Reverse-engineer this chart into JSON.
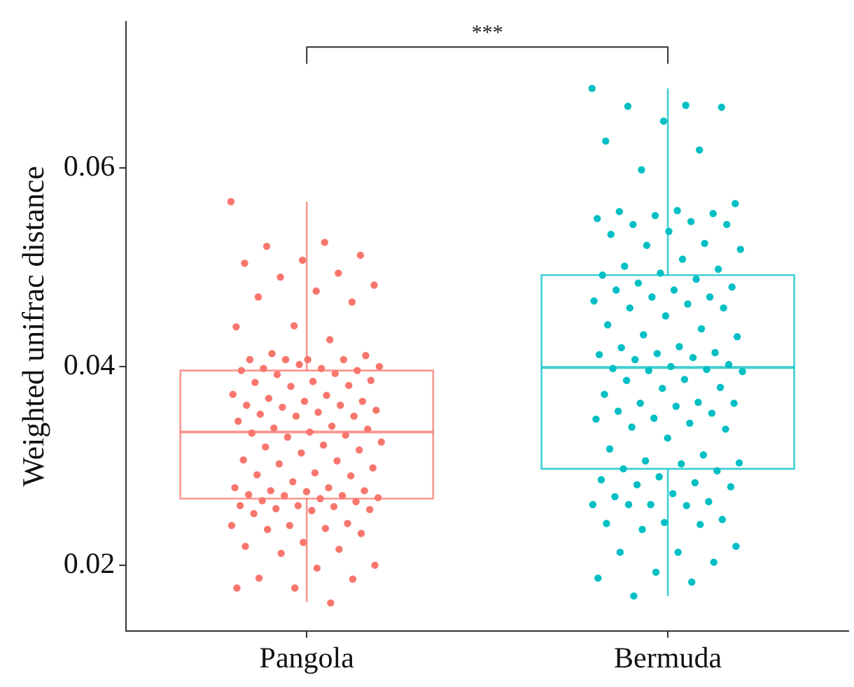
{
  "chart_data": {
    "type": "box",
    "ylabel": "Weighted unifrac distance",
    "categories": [
      "Pangola",
      "Bermuda"
    ],
    "ylim": [
      0.0134,
      0.0747
    ],
    "yticks": [
      0.02,
      0.04,
      0.06
    ],
    "annotations": [
      "***"
    ],
    "series": [
      {
        "type": "box",
        "colors": [
          "#f8766d",
          "#00bfc4"
        ],
        "boxes": [
          {
            "low": 0.0163,
            "q1": 0.0267,
            "median": 0.0334,
            "q3": 0.0396,
            "high": 0.0566
          },
          {
            "low": 0.0169,
            "q1": 0.0297,
            "median": 0.0399,
            "q3": 0.0492,
            "high": 0.068
          }
        ]
      },
      {
        "type": "scatter",
        "color": "#f8766d",
        "x": [
          "Pangola",
          "Pangola",
          "Pangola",
          "Pangola",
          "Pangola",
          "Pangola",
          "Pangola",
          "Pangola",
          "Pangola",
          "Pangola",
          "Pangola",
          "Pangola",
          "Pangola",
          "Pangola",
          "Pangola",
          "Pangola",
          "Pangola",
          "Pangola",
          "Pangola",
          "Pangola",
          "Pangola",
          "Pangola",
          "Pangola",
          "Pangola",
          "Pangola",
          "Pangola",
          "Pangola",
          "Pangola",
          "Pangola",
          "Pangola",
          "Pangola",
          "Pangola",
          "Pangola",
          "Pangola",
          "Pangola",
          "Pangola",
          "Pangola",
          "Pangola",
          "Pangola",
          "Pangola",
          "Pangola",
          "Pangola",
          "Pangola",
          "Pangola",
          "Pangola",
          "Pangola",
          "Pangola",
          "Pangola",
          "Pangola",
          "Pangola",
          "Pangola",
          "Pangola",
          "Pangola",
          "Pangola",
          "Pangola",
          "Pangola",
          "Pangola",
          "Pangola",
          "Pangola",
          "Pangola",
          "Pangola",
          "Pangola",
          "Pangola",
          "Pangola",
          "Pangola",
          "Pangola",
          "Pangola",
          "Pangola",
          "Pangola",
          "Pangola",
          "Pangola",
          "Pangola",
          "Pangola",
          "Pangola",
          "Pangola",
          "Pangola",
          "Pangola",
          "Pangola",
          "Pangola",
          "Pangola",
          "Pangola",
          "Pangola",
          "Pangola",
          "Pangola",
          "Pangola",
          "Pangola",
          "Pangola",
          "Pangola",
          "Pangola",
          "Pangola",
          "Pangola",
          "Pangola",
          "Pangola",
          "Pangola",
          "Pangola",
          "Pangola",
          "Pangola",
          "Pangola",
          "Pangola",
          "Pangola",
          "Pangola",
          "Pangola",
          "Pangola",
          "Pangola"
        ],
        "values": [
          0.0566,
          0.0525,
          0.0521,
          0.0512,
          0.0507,
          0.0504,
          0.0494,
          0.049,
          0.0482,
          0.0476,
          0.047,
          0.0465,
          0.0441,
          0.044,
          0.0427,
          0.0413,
          0.0411,
          0.0407,
          0.0407,
          0.0407,
          0.0407,
          0.04,
          0.0398,
          0.0398,
          0.0396,
          0.0402,
          0.0396,
          0.0393,
          0.0392,
          0.0386,
          0.0385,
          0.0384,
          0.0381,
          0.038,
          0.0372,
          0.0371,
          0.0368,
          0.0365,
          0.0365,
          0.0361,
          0.0361,
          0.0359,
          0.0356,
          0.0354,
          0.0352,
          0.035,
          0.035,
          0.0345,
          0.034,
          0.0338,
          0.0337,
          0.0334,
          0.0333,
          0.0331,
          0.0329,
          0.0324,
          0.0321,
          0.0319,
          0.0316,
          0.0313,
          0.0306,
          0.0305,
          0.0302,
          0.0298,
          0.0293,
          0.0291,
          0.029,
          0.0284,
          0.0278,
          0.0278,
          0.0275,
          0.0275,
          0.0274,
          0.0271,
          0.027,
          0.027,
          0.0268,
          0.0267,
          0.0265,
          0.0264,
          0.026,
          0.026,
          0.0259,
          0.0257,
          0.0256,
          0.0255,
          0.0252,
          0.0242,
          0.024,
          0.024,
          0.0237,
          0.0236,
          0.0232,
          0.0223,
          0.0219,
          0.0216,
          0.0212,
          0.02,
          0.0197,
          0.0187,
          0.0186,
          0.0177,
          0.0177,
          0.0162
        ]
      },
      {
        "type": "scatter",
        "color": "#00bfc4",
        "x": [
          "Bermuda",
          "Bermuda",
          "Bermuda",
          "Bermuda",
          "Bermuda",
          "Bermuda",
          "Bermuda",
          "Bermuda",
          "Bermuda",
          "Bermuda",
          "Bermuda",
          "Bermuda",
          "Bermuda",
          "Bermuda",
          "Bermuda",
          "Bermuda",
          "Bermuda",
          "Bermuda",
          "Bermuda",
          "Bermuda",
          "Bermuda",
          "Bermuda",
          "Bermuda",
          "Bermuda",
          "Bermuda",
          "Bermuda",
          "Bermuda",
          "Bermuda",
          "Bermuda",
          "Bermuda",
          "Bermuda",
          "Bermuda",
          "Bermuda",
          "Bermuda",
          "Bermuda",
          "Bermuda",
          "Bermuda",
          "Bermuda",
          "Bermuda",
          "Bermuda",
          "Bermuda",
          "Bermuda",
          "Bermuda",
          "Bermuda",
          "Bermuda",
          "Bermuda",
          "Bermuda",
          "Bermuda",
          "Bermuda",
          "Bermuda",
          "Bermuda",
          "Bermuda",
          "Bermuda",
          "Bermuda",
          "Bermuda",
          "Bermuda",
          "Bermuda",
          "Bermuda",
          "Bermuda",
          "Bermuda",
          "Bermuda",
          "Bermuda",
          "Bermuda",
          "Bermuda",
          "Bermuda",
          "Bermuda",
          "Bermuda",
          "Bermuda",
          "Bermuda",
          "Bermuda",
          "Bermuda",
          "Bermuda",
          "Bermuda",
          "Bermuda",
          "Bermuda",
          "Bermuda",
          "Bermuda",
          "Bermuda",
          "Bermuda",
          "Bermuda",
          "Bermuda",
          "Bermuda",
          "Bermuda",
          "Bermuda",
          "Bermuda",
          "Bermuda",
          "Bermuda",
          "Bermuda",
          "Bermuda",
          "Bermuda",
          "Bermuda",
          "Bermuda",
          "Bermuda",
          "Bermuda",
          "Bermuda",
          "Bermuda",
          "Bermuda",
          "Bermuda",
          "Bermuda",
          "Bermuda",
          "Bermuda",
          "Bermuda",
          "Bermuda",
          "Bermuda",
          "Bermuda"
        ],
        "values": [
          0.068,
          0.0663,
          0.0662,
          0.0661,
          0.0647,
          0.0627,
          0.0618,
          0.0598,
          0.0564,
          0.0557,
          0.0556,
          0.0554,
          0.0552,
          0.0549,
          0.0546,
          0.0543,
          0.0543,
          0.0536,
          0.0533,
          0.0524,
          0.0522,
          0.0518,
          0.0508,
          0.0501,
          0.0498,
          0.0494,
          0.0492,
          0.0488,
          0.0484,
          0.048,
          0.0477,
          0.0477,
          0.047,
          0.047,
          0.0466,
          0.0463,
          0.0459,
          0.0459,
          0.0451,
          0.0442,
          0.0438,
          0.0432,
          0.043,
          0.042,
          0.0419,
          0.0414,
          0.0413,
          0.0412,
          0.0409,
          0.0407,
          0.0402,
          0.04,
          0.0398,
          0.0397,
          0.0396,
          0.0395,
          0.0387,
          0.0386,
          0.0379,
          0.0378,
          0.0372,
          0.0364,
          0.0363,
          0.0363,
          0.036,
          0.0355,
          0.0353,
          0.0348,
          0.0347,
          0.0343,
          0.0339,
          0.0337,
          0.0328,
          0.0317,
          0.0311,
          0.0305,
          0.0303,
          0.0302,
          0.0297,
          0.0295,
          0.0289,
          0.0286,
          0.0283,
          0.0281,
          0.0279,
          0.0272,
          0.0269,
          0.0264,
          0.0261,
          0.0261,
          0.026,
          0.0261,
          0.0246,
          0.0243,
          0.0242,
          0.0241,
          0.0236,
          0.0219,
          0.0213,
          0.0213,
          0.0203,
          0.0193,
          0.0187,
          0.0183,
          0.0169
        ]
      }
    ]
  }
}
